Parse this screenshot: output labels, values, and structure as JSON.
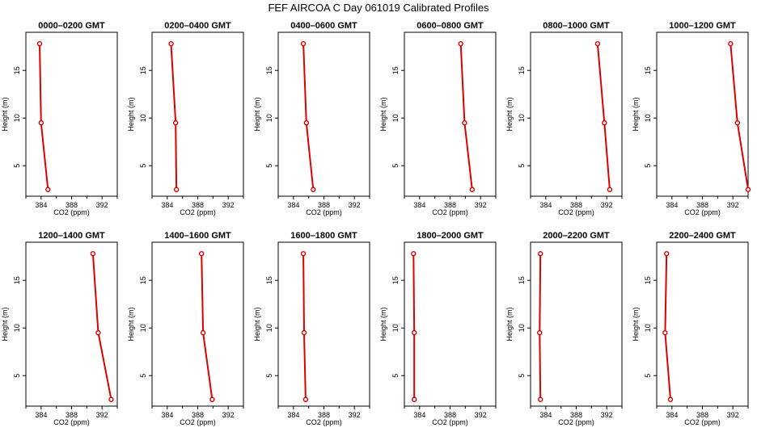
{
  "figure": {
    "title": "FEF AIRCOA C  Day 061019  Calibrated Profiles"
  },
  "chart_data": [
    {
      "type": "line",
      "title": "0000–0200 GMT",
      "xlabel": "CO2 (ppm)",
      "ylabel": "Height (m)",
      "xlim": [
        382,
        394
      ],
      "ylim": [
        1.8,
        19
      ],
      "xticks": [
        384,
        388,
        392
      ],
      "yticks": [
        5,
        10,
        15
      ],
      "series": [
        {
          "x": [
            383.8,
            384.0,
            384.9
          ],
          "y": [
            17.8,
            9.5,
            2.5
          ]
        }
      ]
    },
    {
      "type": "line",
      "title": "0200–0400 GMT",
      "xlabel": "CO2 (ppm)",
      "ylabel": "Height (m)",
      "xlim": [
        382,
        394
      ],
      "ylim": [
        1.8,
        19
      ],
      "xticks": [
        384,
        388,
        392
      ],
      "yticks": [
        5,
        10,
        15
      ],
      "series": [
        {
          "x": [
            384.5,
            385.1,
            385.2
          ],
          "y": [
            17.8,
            9.5,
            2.5
          ]
        }
      ]
    },
    {
      "type": "line",
      "title": "0400–0600 GMT",
      "xlabel": "CO2 (ppm)",
      "ylabel": "Height (m)",
      "xlim": [
        382,
        394
      ],
      "ylim": [
        1.8,
        19
      ],
      "xticks": [
        384,
        388,
        392
      ],
      "yticks": [
        5,
        10,
        15
      ],
      "series": [
        {
          "x": [
            385.3,
            385.7,
            386.6
          ],
          "y": [
            17.8,
            9.5,
            2.5
          ]
        }
      ]
    },
    {
      "type": "line",
      "title": "0600–0800 GMT",
      "xlabel": "CO2 (ppm)",
      "ylabel": "Height (m)",
      "xlim": [
        382,
        394
      ],
      "ylim": [
        1.8,
        19
      ],
      "xticks": [
        384,
        388,
        392
      ],
      "yticks": [
        5,
        10,
        15
      ],
      "series": [
        {
          "x": [
            389.4,
            389.9,
            390.9
          ],
          "y": [
            17.8,
            9.5,
            2.5
          ]
        }
      ]
    },
    {
      "type": "line",
      "title": "0800–1000 GMT",
      "xlabel": "CO2 (ppm)",
      "ylabel": "Height (m)",
      "xlim": [
        382,
        394
      ],
      "ylim": [
        1.8,
        19
      ],
      "xticks": [
        384,
        388,
        392
      ],
      "yticks": [
        5,
        10,
        15
      ],
      "series": [
        {
          "x": [
            390.8,
            391.7,
            392.4
          ],
          "y": [
            17.8,
            9.5,
            2.5
          ]
        }
      ]
    },
    {
      "type": "line",
      "title": "1000–1200 GMT",
      "xlabel": "CO2 (ppm)",
      "ylabel": "Height (m)",
      "xlim": [
        382,
        394
      ],
      "ylim": [
        1.8,
        19
      ],
      "xticks": [
        384,
        388,
        392
      ],
      "yticks": [
        5,
        10,
        15
      ],
      "series": [
        {
          "x": [
            391.7,
            392.6,
            394.0
          ],
          "y": [
            17.8,
            9.5,
            2.5
          ]
        }
      ]
    },
    {
      "type": "line",
      "title": "1200–1400 GMT",
      "xlabel": "CO2 (ppm)",
      "ylabel": "Height (m)",
      "xlim": [
        382,
        394
      ],
      "ylim": [
        1.8,
        19
      ],
      "xticks": [
        384,
        388,
        392
      ],
      "yticks": [
        5,
        10,
        15
      ],
      "series": [
        {
          "x": [
            390.8,
            391.5,
            393.2
          ],
          "y": [
            17.8,
            9.5,
            2.5
          ]
        }
      ]
    },
    {
      "type": "line",
      "title": "1400–1600 GMT",
      "xlabel": "CO2 (ppm)",
      "ylabel": "Height (m)",
      "xlim": [
        382,
        394
      ],
      "ylim": [
        1.8,
        19
      ],
      "xticks": [
        384,
        388,
        392
      ],
      "yticks": [
        5,
        10,
        15
      ],
      "series": [
        {
          "x": [
            388.5,
            388.7,
            389.9
          ],
          "y": [
            17.8,
            9.5,
            2.5
          ]
        }
      ]
    },
    {
      "type": "line",
      "title": "1600–1800 GMT",
      "xlabel": "CO2 (ppm)",
      "ylabel": "Height (m)",
      "xlim": [
        382,
        394
      ],
      "ylim": [
        1.8,
        19
      ],
      "xticks": [
        384,
        388,
        392
      ],
      "yticks": [
        5,
        10,
        15
      ],
      "series": [
        {
          "x": [
            385.3,
            385.4,
            385.6
          ],
          "y": [
            17.8,
            9.5,
            2.5
          ]
        }
      ]
    },
    {
      "type": "line",
      "title": "1800–2000 GMT",
      "xlabel": "CO2 (ppm)",
      "ylabel": "Height (m)",
      "xlim": [
        382,
        394
      ],
      "ylim": [
        1.8,
        19
      ],
      "xticks": [
        384,
        388,
        392
      ],
      "yticks": [
        5,
        10,
        15
      ],
      "series": [
        {
          "x": [
            383.2,
            383.3,
            383.3
          ],
          "y": [
            17.8,
            9.5,
            2.5
          ]
        }
      ]
    },
    {
      "type": "line",
      "title": "2000–2200 GMT",
      "xlabel": "CO2 (ppm)",
      "ylabel": "Height (m)",
      "xlim": [
        382,
        394
      ],
      "ylim": [
        1.8,
        19
      ],
      "xticks": [
        384,
        388,
        392
      ],
      "yticks": [
        5,
        10,
        15
      ],
      "series": [
        {
          "x": [
            383.3,
            383.2,
            383.3
          ],
          "y": [
            17.8,
            9.5,
            2.5
          ]
        }
      ]
    },
    {
      "type": "line",
      "title": "2200–2400 GMT",
      "xlabel": "CO2 (ppm)",
      "ylabel": "Height (m)",
      "xlim": [
        382,
        394
      ],
      "ylim": [
        1.8,
        19
      ],
      "xticks": [
        384,
        388,
        392
      ],
      "yticks": [
        5,
        10,
        15
      ],
      "series": [
        {
          "x": [
            383.3,
            383.1,
            383.8
          ],
          "y": [
            17.8,
            9.5,
            2.5
          ]
        }
      ]
    }
  ],
  "colors": {
    "profile": "#dd0000",
    "axis": "#000000"
  }
}
